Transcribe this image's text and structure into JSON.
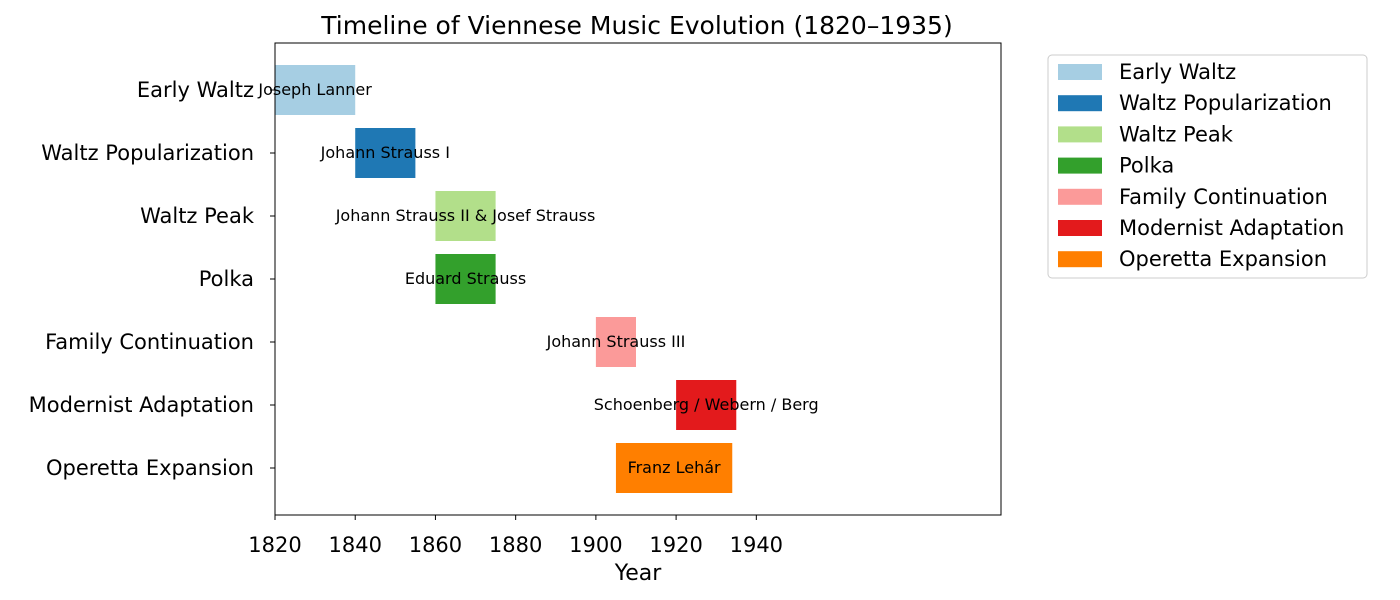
{
  "chart_data": {
    "type": "bar",
    "orientation": "horizontal",
    "title": "Timeline of Viennese Music Evolution (1820–1935)",
    "xlabel": "Year",
    "ylabel": "",
    "xlim": [
      1820,
      2001
    ],
    "xticks": [
      "1820",
      "1840",
      "1860",
      "1880",
      "1900",
      "1920",
      "1940"
    ],
    "grid": false,
    "legend_position": "outside-top-right",
    "categories": [
      "Early Waltz",
      "Waltz Popularization",
      "Waltz Peak",
      "Polka",
      "Family Continuation",
      "Modernist Adaptation",
      "Operetta Expansion"
    ],
    "series": [
      {
        "name": "Early Waltz",
        "start": 1820,
        "end": 1840,
        "label": "Joseph Lanner",
        "color": "#a6cee3"
      },
      {
        "name": "Waltz Popularization",
        "start": 1840,
        "end": 1855,
        "label": "Johann Strauss I",
        "color": "#1f78b4"
      },
      {
        "name": "Waltz Peak",
        "start": 1860,
        "end": 1875,
        "label": "Johann Strauss II & Josef Strauss",
        "color": "#b2df8a"
      },
      {
        "name": "Polka",
        "start": 1860,
        "end": 1875,
        "label": "Eduard Strauss",
        "color": "#33a02c"
      },
      {
        "name": "Family Continuation",
        "start": 1900,
        "end": 1910,
        "label": "Johann Strauss III",
        "color": "#fb9a99"
      },
      {
        "name": "Modernist Adaptation",
        "start": 1920,
        "end": 1935,
        "label": "Schoenberg / Webern / Berg",
        "color": "#e31a1c"
      },
      {
        "name": "Operetta Expansion",
        "start": 1905,
        "end": 1934,
        "label": "Franz Lehár",
        "color": "#ff7f00"
      }
    ]
  }
}
